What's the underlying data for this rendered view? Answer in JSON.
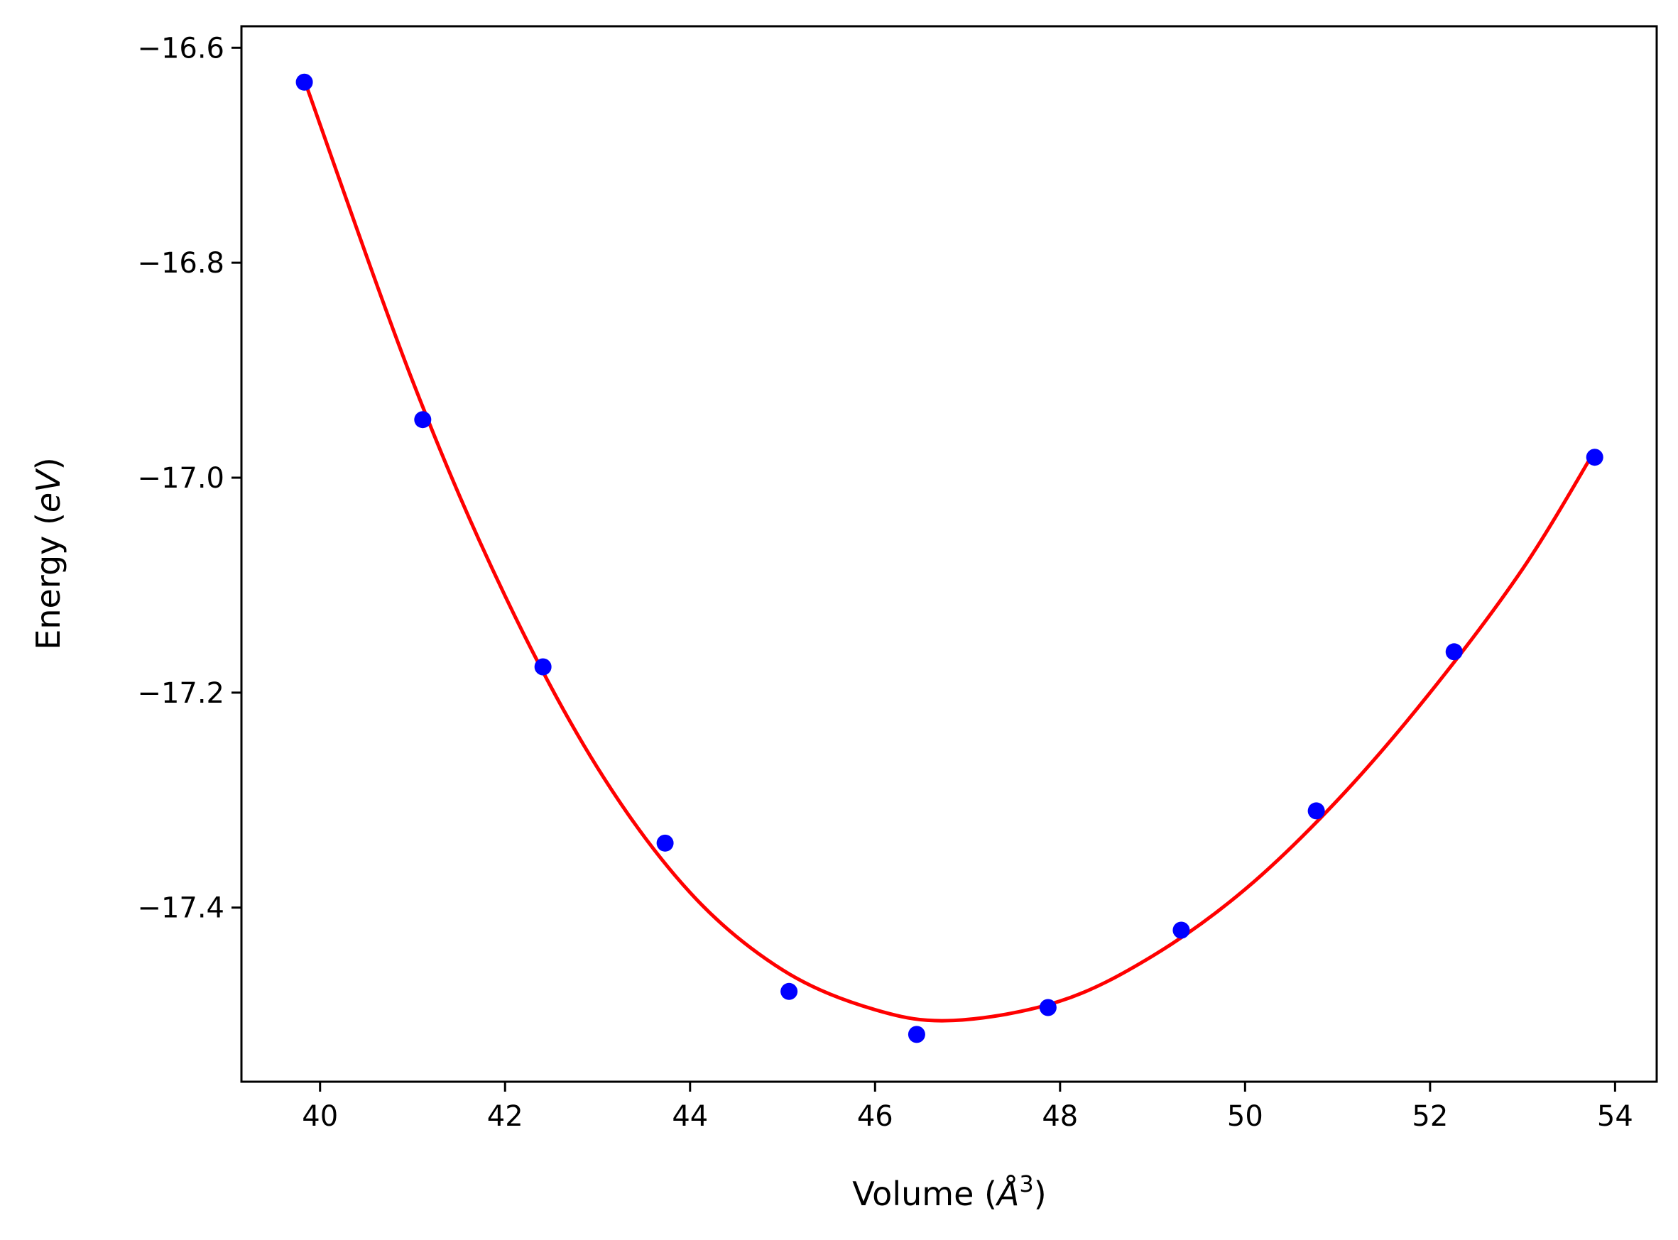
{
  "chart_data": {
    "type": "scatter",
    "xlabel": "Volume (Å³)",
    "xlabel_parts": {
      "main": "Volume (",
      "symbol": "Å",
      "sup": "3",
      "close": ")"
    },
    "ylabel": "Energy (eV)",
    "ylabel_parts": {
      "main": "Energy (",
      "unit": "eV",
      "close": ")"
    },
    "xlim": [
      39.15,
      54.45
    ],
    "ylim": [
      -17.562,
      -16.58
    ],
    "xticks": [
      40,
      42,
      44,
      46,
      48,
      50,
      52,
      54
    ],
    "yticks": [
      -16.6,
      -16.8,
      -17.0,
      -17.2,
      -17.4
    ],
    "ytick_labels": [
      "−16.6",
      "−16.8",
      "−17.0",
      "−17.2",
      "−17.4"
    ],
    "grid": false,
    "series": [
      {
        "kind": "points",
        "color": "#0000ff",
        "x": [
          39.83,
          41.11,
          42.41,
          43.73,
          45.07,
          46.45,
          47.87,
          49.31,
          50.77,
          52.26,
          53.78
        ],
        "y": [
          -16.632,
          -16.946,
          -17.176,
          -17.34,
          -17.478,
          -17.518,
          -17.493,
          -17.421,
          -17.31,
          -17.162,
          -16.981
        ]
      },
      {
        "kind": "fit",
        "color": "#ff0000",
        "x": [
          39.83,
          41.0,
          42.0,
          43.0,
          44.0,
          45.0,
          46.0,
          46.85,
          48.0,
          49.0,
          50.0,
          51.0,
          52.0,
          53.0,
          53.78
        ],
        "y": [
          -16.63,
          -16.91,
          -17.11,
          -17.27,
          -17.386,
          -17.458,
          -17.495,
          -17.505,
          -17.487,
          -17.445,
          -17.383,
          -17.3,
          -17.2,
          -17.085,
          -16.975
        ]
      }
    ]
  }
}
